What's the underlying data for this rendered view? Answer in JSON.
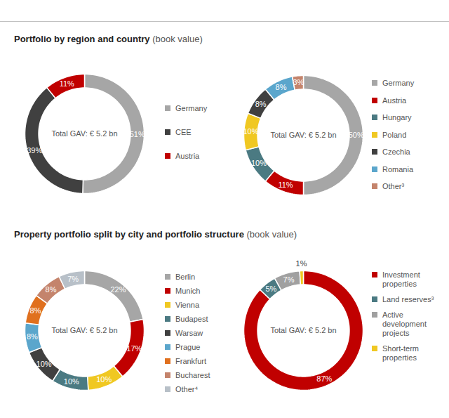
{
  "headings": [
    {
      "title": "Portfolio by region and country",
      "subtitle": "(book value)"
    },
    {
      "title": "Property portfolio split by city and portfolio structure",
      "subtitle": "(book value)"
    }
  ],
  "chart_data": [
    {
      "type": "pie",
      "center_label": "Total GAV: € 5.2 bn",
      "categories": [
        "Germany",
        "CEE",
        "Austria"
      ],
      "values": [
        51,
        39,
        11
      ],
      "value_labels": [
        "51%",
        "39%",
        "11%"
      ],
      "colors": [
        "#a6a6a6",
        "#404040",
        "#c00000"
      ],
      "data_labels": true,
      "legend": "right"
    },
    {
      "type": "pie",
      "center_label": "Total GAV: € 5.2 bn",
      "categories": [
        "Germany",
        "Austria",
        "Hungary",
        "Poland",
        "Czechia",
        "Romania",
        "Other³"
      ],
      "values": [
        50,
        11,
        10,
        10,
        8,
        8,
        3
      ],
      "value_labels": [
        "50%",
        "11%",
        "10%",
        "10%",
        "8%",
        "8%",
        "3%"
      ],
      "colors": [
        "#a6a6a6",
        "#c00000",
        "#4b7a82",
        "#f0c822",
        "#404040",
        "#5ba6cc",
        "#c4846c"
      ],
      "data_labels": true,
      "legend": "right"
    },
    {
      "type": "pie",
      "center_label": "Total GAV: € 5.2 bn",
      "categories": [
        "Berlin",
        "Munich",
        "Vienna",
        "Budapest",
        "Warsaw",
        "Prague",
        "Frankfurt",
        "Bucharest",
        "Other⁴"
      ],
      "values": [
        22,
        17,
        10,
        10,
        10,
        8,
        8,
        8,
        7
      ],
      "value_labels": [
        "22%",
        "17%",
        "10%",
        "10%",
        "10%",
        "8%",
        "8%",
        "8%",
        "7%"
      ],
      "colors": [
        "#a6a6a6",
        "#c00000",
        "#f0c822",
        "#4b7a82",
        "#404040",
        "#5ba6cc",
        "#e0701e",
        "#c4846c",
        "#b8c0c8"
      ],
      "data_labels": true,
      "legend": "right"
    },
    {
      "type": "pie",
      "center_label": "Total GAV: € 5.2 bn",
      "categories": [
        "Investment properties",
        "Land reserves³",
        "Active development projects",
        "Short-term properties"
      ],
      "values": [
        87,
        5,
        7,
        1
      ],
      "value_labels": [
        "87%",
        "5%",
        "7%",
        "1%"
      ],
      "colors": [
        "#c00000",
        "#4b7a82",
        "#a0a0a0",
        "#f0c822"
      ],
      "data_labels": true,
      "legend": "right"
    }
  ]
}
